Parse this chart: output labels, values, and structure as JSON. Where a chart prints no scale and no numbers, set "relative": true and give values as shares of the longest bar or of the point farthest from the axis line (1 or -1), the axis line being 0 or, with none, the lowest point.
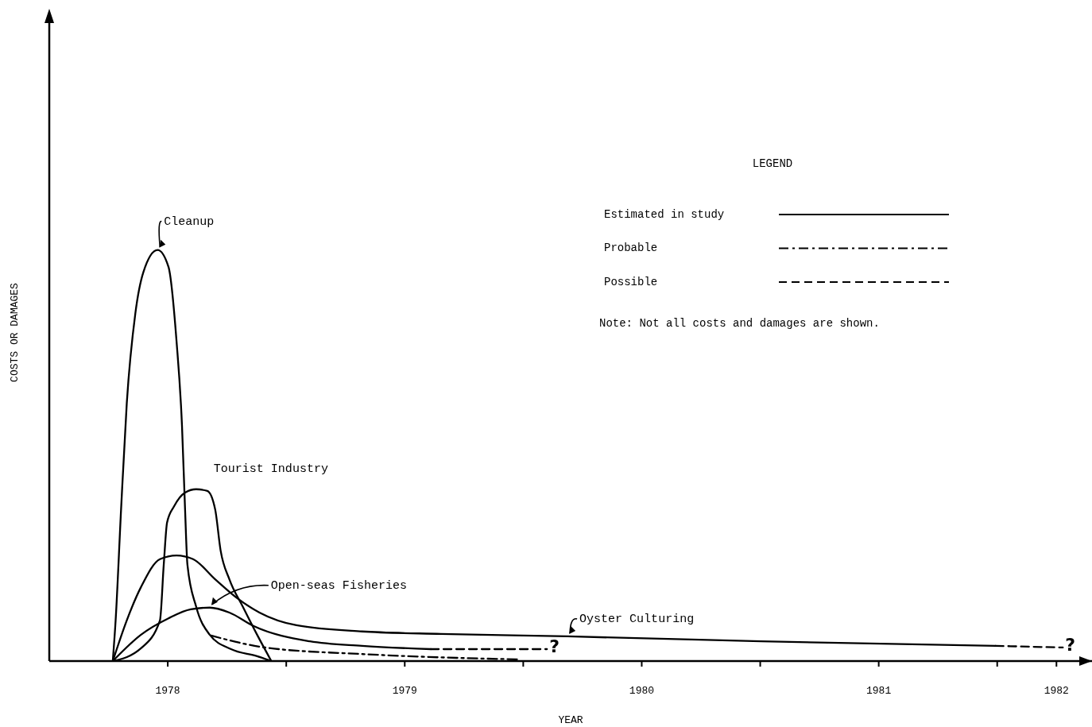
{
  "chart_data": {
    "type": "line",
    "relative": true,
    "xlabel": "YEAR",
    "ylabel": "COSTS OR DAMAGES",
    "legend_title": "LEGEND",
    "grid": false,
    "xlim": [
      1978,
      1982.4
    ],
    "xticks": [
      {
        "value": 1978.5,
        "label": "1978"
      },
      {
        "value": 1979,
        "label": null
      },
      {
        "value": 1979.5,
        "label": "1979"
      },
      {
        "value": 1980,
        "label": null
      },
      {
        "value": 1980.5,
        "label": "1980"
      },
      {
        "value": 1981,
        "label": null
      },
      {
        "value": 1981.5,
        "label": "1981"
      },
      {
        "value": 1982,
        "label": null
      },
      {
        "value": 1982.25,
        "label": "1982"
      }
    ],
    "series": [
      {
        "name": "Cleanup",
        "color": "#000000",
        "line_style": "solid",
        "x": [
          1978.268,
          1978.28,
          1978.303,
          1978.327,
          1978.363,
          1978.397,
          1978.457,
          1978.503,
          1978.537,
          1978.56,
          1978.573,
          1978.583,
          1978.62,
          1978.677,
          1978.767,
          1978.877,
          1978.937
        ],
        "values": [
          0,
          0.099,
          0.369,
          0.627,
          0.845,
          0.946,
          1,
          0.959,
          0.778,
          0.573,
          0.369,
          0.234,
          0.132,
          0.064,
          0.029,
          0.012,
          0
        ]
      },
      {
        "name": "Tourist Industry",
        "color": "#000000",
        "line_style": "solid",
        "x": [
          1978.268,
          1978.387,
          1978.467,
          1978.483,
          1978.497,
          1978.527,
          1978.573,
          1978.62,
          1978.667,
          1978.7,
          1978.723,
          1978.76,
          1978.817,
          1978.877,
          1978.937
        ],
        "values": [
          0,
          0.031,
          0.099,
          0.234,
          0.337,
          0.377,
          0.41,
          0.418,
          0.414,
          0.369,
          0.269,
          0.199,
          0.132,
          0.064,
          0
        ]
      },
      {
        "name": "Open-seas Fisheries",
        "color": "#000000",
        "line_style": "solid",
        "x": [
          1978.268,
          1978.387,
          1978.503,
          1978.597,
          1978.677,
          1978.76,
          1978.863,
          1979.1,
          1979.32,
          1979.61
        ],
        "values": [
          0,
          0.064,
          0.104,
          0.126,
          0.13,
          0.118,
          0.085,
          0.048,
          0.037,
          0.029
        ]
      },
      {
        "name": "Oyster Culturing",
        "color": "#000000",
        "line_style": "solid",
        "x": [
          1978.268,
          1978.327,
          1978.387,
          1978.467,
          1978.537,
          1978.607,
          1978.7,
          1978.793,
          1978.887,
          1979.043,
          1979.32,
          1979.653,
          1980.187,
          1981.003,
          1981.993
        ],
        "values": [
          0,
          0.099,
          0.18,
          0.248,
          0.257,
          0.248,
          0.199,
          0.153,
          0.118,
          0.087,
          0.072,
          0.066,
          0.06,
          0.048,
          0.037
        ]
      },
      {
        "color": "#000000",
        "line_style": "dashdot",
        "x": [
          1978.683,
          1978.91,
          1979.32,
          1979.6,
          1979.987
        ],
        "values": [
          0.062,
          0.033,
          0.017,
          0.01,
          0.004
        ]
      },
      {
        "color": "#000000",
        "line_style": "dashed",
        "x": [
          1979.61,
          1980.1
        ],
        "values": [
          0.029,
          0.029
        ]
      },
      {
        "color": "#000000",
        "line_style": "dashed",
        "x": [
          1981.993,
          1982.277
        ],
        "values": [
          0.037,
          0.033
        ]
      }
    ],
    "annotations": [
      "Estimated in study",
      "Probable",
      "Possible",
      "Note: Not all costs and damages are shown.",
      {
        "text": "?",
        "x": 1980.1,
        "y": 0.029
      },
      {
        "text": "?",
        "x": 1982.277,
        "y": 0.033
      }
    ]
  }
}
